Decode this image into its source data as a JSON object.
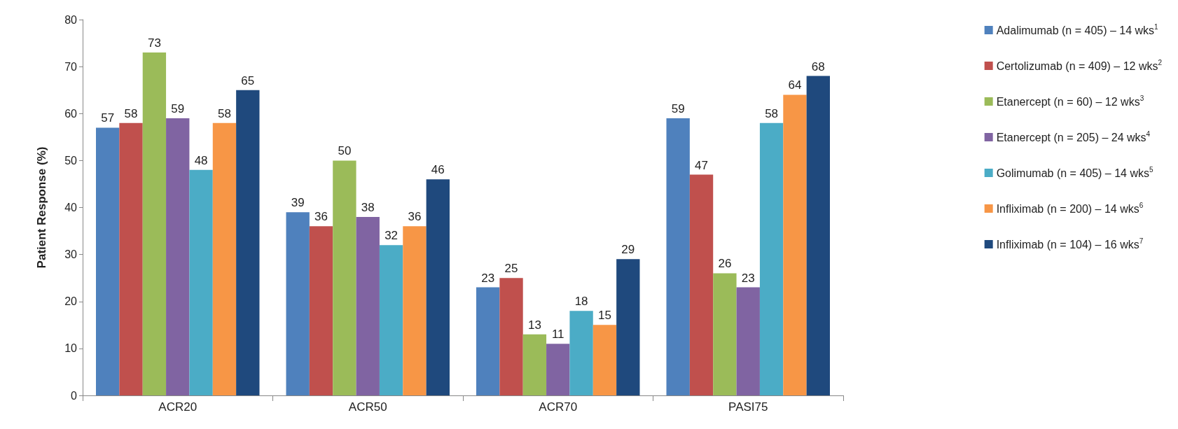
{
  "chart_data": {
    "type": "bar",
    "ylabel": "Patient Response (%)",
    "categories": [
      "ACR20",
      "ACR50",
      "ACR70",
      "PASI75"
    ],
    "series": [
      {
        "name": "Adalimumab (n = 405) – 14 wks$^{1}$",
        "color": "#4f81bd",
        "values": [
          57,
          39,
          23,
          59
        ]
      },
      {
        "name": "Certolizumab (n = 409) – 12 wks$^{2}$",
        "color": "#c0504d",
        "values": [
          58,
          36,
          25,
          47
        ]
      },
      {
        "name": "Etanercept (n = 60) – 12 wks$^{3}$",
        "color": "#9bbb59",
        "values": [
          73,
          50,
          13,
          26
        ]
      },
      {
        "name": "Etanercept (n = 205) – 24 wks$^{4}$",
        "color": "#8064a2",
        "values": [
          59,
          38,
          11,
          23
        ]
      },
      {
        "name": "Golimumab (n = 405) – 14 wks$^{5}$",
        "color": "#4bacc6",
        "values": [
          48,
          32,
          18,
          58
        ]
      },
      {
        "name": "Infliximab (n = 200) – 14 wks$^{6}$",
        "color": "#f79646",
        "values": [
          58,
          36,
          15,
          64
        ]
      },
      {
        "name": "Infliximab (n = 104) – 16 wks$^{7}$",
        "color": "#1f497d",
        "values": [
          65,
          46,
          29,
          68
        ]
      }
    ],
    "ylim": [
      0,
      80
    ],
    "yticks": [
      0,
      10,
      20,
      30,
      40,
      50,
      60,
      70,
      80
    ],
    "grid": false,
    "legend": "right",
    "data_labels": true
  }
}
